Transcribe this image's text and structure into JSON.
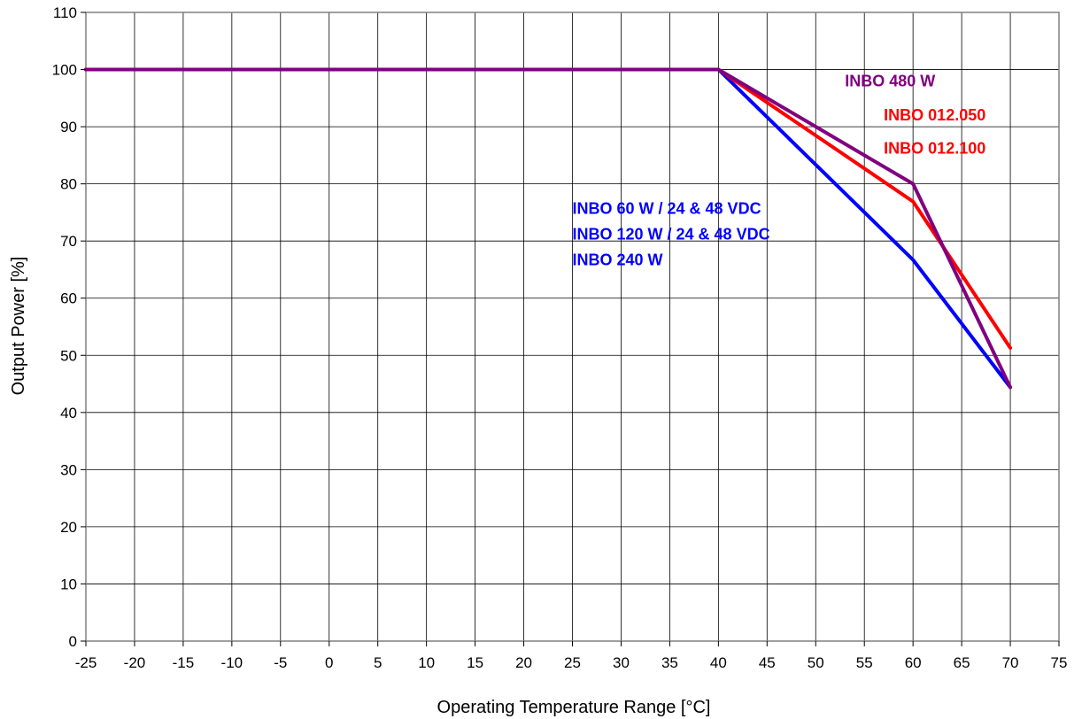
{
  "chart_data": {
    "type": "line",
    "title": "",
    "xlabel": "Operating Temperature Range [°C]",
    "ylabel": "Output Power [%]",
    "xlim": [
      -25,
      75
    ],
    "ylim": [
      0,
      110
    ],
    "x_ticks": [
      -25,
      -20,
      -15,
      -10,
      -5,
      0,
      5,
      10,
      15,
      20,
      25,
      30,
      35,
      40,
      45,
      50,
      55,
      60,
      65,
      70,
      75
    ],
    "y_ticks": [
      0,
      10,
      20,
      30,
      40,
      50,
      60,
      70,
      80,
      90,
      100,
      110
    ],
    "grid": true,
    "legend": "none",
    "series": [
      {
        "color": "#0000ff",
        "points": [
          [
            -25,
            100
          ],
          [
            40,
            100
          ],
          [
            60,
            66.7
          ],
          [
            70,
            44.4
          ]
        ]
      },
      {
        "color": "#ff0000",
        "points": [
          [
            -25,
            100
          ],
          [
            40,
            100
          ],
          [
            60,
            76.9
          ],
          [
            70,
            51.3
          ]
        ]
      },
      {
        "color": "#800080",
        "points": [
          [
            -25,
            100
          ],
          [
            40,
            100
          ],
          [
            60,
            80
          ],
          [
            70,
            44.4
          ]
        ]
      }
    ],
    "annotations": [
      {
        "text": "INBO 480 W",
        "color": "#800080",
        "x": 53,
        "y": 98
      },
      {
        "text": "INBO 012.050",
        "color": "#ff0000",
        "x": 57,
        "y": 92
      },
      {
        "text": "INBO 012.100",
        "color": "#ff0000",
        "x": 57,
        "y": 86.2
      },
      {
        "text": "INBO 60 W  / 24  & 48 VDC",
        "color": "#0000ff",
        "x": 25,
        "y": 75.7
      },
      {
        "text": "INBO 120 W / 24 & 48 VDC",
        "color": "#0000ff",
        "x": 25,
        "y": 71.2
      },
      {
        "text": "INBO 240 W",
        "color": "#0000ff",
        "x": 25,
        "y": 66.7
      }
    ]
  }
}
